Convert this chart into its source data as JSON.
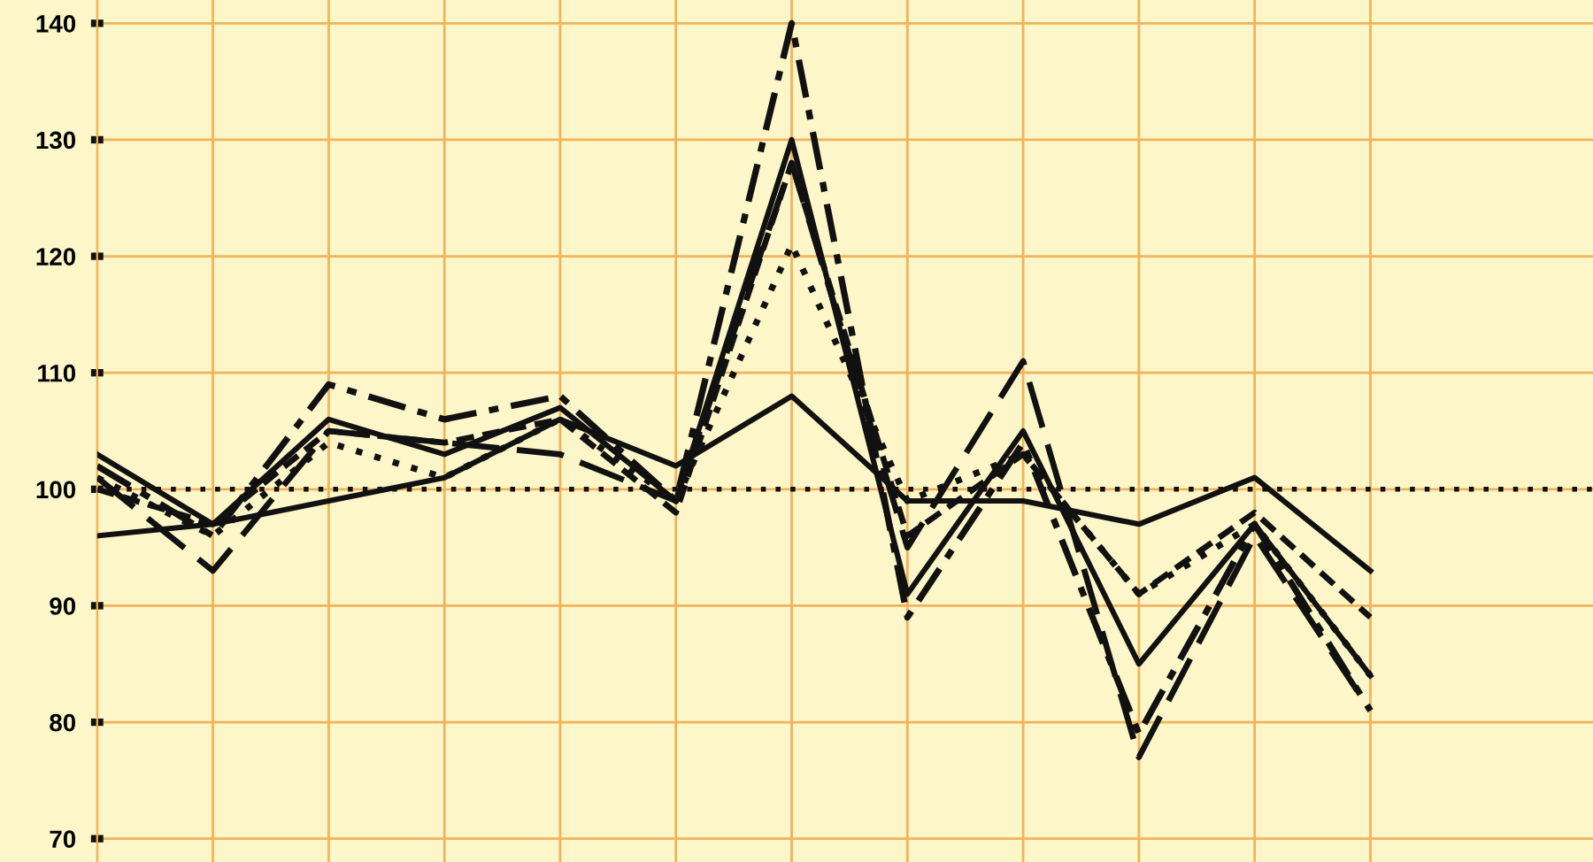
{
  "chart_data": {
    "type": "line",
    "categories": [
      null,
      null,
      null,
      null,
      null,
      null,
      null,
      null,
      null,
      null,
      null,
      null
    ],
    "series": [
      {
        "color": "#111111",
        "line_style": "solid",
        "values": [
          96,
          97,
          99,
          101,
          106,
          102,
          108,
          99,
          99,
          97,
          101,
          93
        ]
      },
      {
        "color": "#111111",
        "line_style": "dashdot",
        "values": [
          102,
          96,
          109,
          106,
          108,
          99,
          140,
          89,
          104,
          79,
          97,
          81
        ]
      },
      {
        "color": "#111111",
        "line_style": "longdash",
        "values": [
          101,
          93,
          105,
          104,
          103,
          99,
          128,
          95,
          111,
          77,
          96,
          81
        ]
      },
      {
        "color": "#111111",
        "line_style": "solid",
        "values": [
          103,
          97,
          106,
          103,
          107,
          99,
          130,
          91,
          105,
          85,
          97,
          84
        ]
      },
      {
        "color": "#111111",
        "line_style": "dotted",
        "values": [
          101,
          96,
          104,
          101,
          106,
          99,
          121,
          99,
          103,
          91,
          97,
          84
        ]
      },
      {
        "color": "#111111",
        "line_style": "dashed",
        "values": [
          100,
          97,
          105,
          104,
          106,
          98,
          128,
          96,
          103,
          91,
          98,
          89
        ]
      }
    ],
    "ylim": [
      68,
      142
    ],
    "yticks": [
      70,
      80,
      90,
      100,
      110,
      120,
      130,
      140
    ],
    "grid": true,
    "ref_lines": [
      {
        "axis": "y",
        "value": 100,
        "line_style": "dotted",
        "color": "#111111"
      }
    ]
  }
}
